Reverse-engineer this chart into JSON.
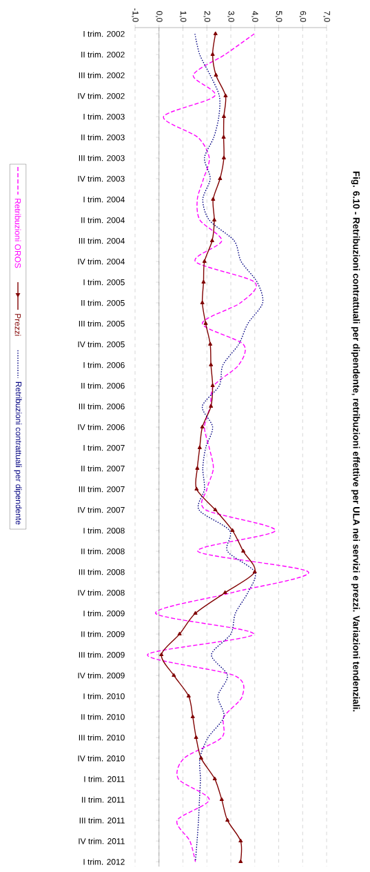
{
  "chart_data": {
    "type": "line",
    "title": "Fig. 6.10 - Retribuzioni contrattuali per dipendente, retribuzioni effettive per ULA nei servizi e prezzi. Variazioni tendenziali.",
    "categories": [
      "I trim. 2002",
      "II trim. 2002",
      "III trim. 2002",
      "IV trim. 2002",
      "I trim. 2003",
      "II trim. 2003",
      "III trim. 2003",
      "IV trim. 2003",
      "I trim. 2004",
      "II trim. 2004",
      "III trim. 2004",
      "IV trim. 2004",
      "I trim. 2005",
      "II trim. 2005",
      "III trim. 2005",
      "IV trim. 2005",
      "I trim. 2006",
      "II trim. 2006",
      "III trim. 2006",
      "IV trim. 2006",
      "I trim. 2007",
      "II trim. 2007",
      "III trim. 2007",
      "IV trim. 2007",
      "I trim. 2008",
      "II trim. 2008",
      "III trim. 2008",
      "IV trim. 2008",
      "I trim. 2009",
      "II trim. 2009",
      "III trim. 2009",
      "IV trim. 2009",
      "I trim. 2010",
      "II trim. 2010",
      "III trim. 2010",
      "IV trim. 2010",
      "I trim. 2011",
      "II trim. 2011",
      "III trim. 2011",
      "IV trim. 2011",
      "I trim. 2012"
    ],
    "series": [
      {
        "name": "Retribuzioni OROS",
        "color": "#ff00ff",
        "line_style": "dashed",
        "marker": "none",
        "values": [
          3.98,
          2.76,
          1.43,
          2.33,
          0.19,
          1.62,
          2.1,
          1.86,
          1.6,
          1.71,
          2.62,
          1.52,
          4.0,
          3.4,
          1.81,
          3.52,
          3.33,
          2.29,
          2.14,
          1.9,
          2.1,
          2.27,
          2.0,
          1.95,
          4.86,
          1.62,
          6.24,
          3.05,
          -0.14,
          3.95,
          -0.48,
          3.14,
          3.48,
          2.71,
          2.62,
          1.05,
          0.81,
          2.1,
          0.76,
          1.29,
          1.52
        ]
      },
      {
        "name": "Prezzi",
        "color": "#800000",
        "line_style": "solid",
        "marker": "triangle",
        "values": [
          2.36,
          2.24,
          2.38,
          2.78,
          2.71,
          2.7,
          2.71,
          2.55,
          2.26,
          2.31,
          2.22,
          1.9,
          1.86,
          1.81,
          1.95,
          2.14,
          2.17,
          2.24,
          2.17,
          1.81,
          1.7,
          1.6,
          1.57,
          2.35,
          3.07,
          3.52,
          4.0,
          2.76,
          1.52,
          0.86,
          0.1,
          0.62,
          1.24,
          1.41,
          1.55,
          1.76,
          2.33,
          2.62,
          2.86,
          3.41,
          3.41
        ]
      },
      {
        "name": "Retribuzioni contrattuali per dipendente",
        "color": "#000080",
        "line_style": "dotted",
        "marker": "none",
        "values": [
          1.5,
          1.7,
          2.14,
          2.52,
          2.5,
          2.29,
          1.9,
          2.14,
          1.83,
          2.1,
          3.14,
          3.43,
          4.1,
          4.33,
          3.71,
          3.33,
          2.67,
          2.52,
          1.81,
          2.24,
          1.95,
          1.83,
          1.9,
          1.67,
          2.95,
          2.86,
          4.0,
          3.71,
          3.19,
          3.0,
          2.19,
          2.86,
          2.46,
          2.71,
          2.05,
          1.71,
          1.73,
          1.69,
          1.65,
          1.59,
          1.52
        ]
      }
    ],
    "orientation": "horizontal",
    "xlim": [
      -1,
      7
    ],
    "xticks": [
      {
        "value": -1,
        "label": "-1,0"
      },
      {
        "value": 0,
        "label": "0,0"
      },
      {
        "value": 1,
        "label": "1,0"
      },
      {
        "value": 2,
        "label": "2,0"
      },
      {
        "value": 3,
        "label": "3,0"
      },
      {
        "value": 4,
        "label": "4,0"
      },
      {
        "value": 5,
        "label": "5,0"
      },
      {
        "value": 6,
        "label": "6,0"
      },
      {
        "value": 7,
        "label": "7,0"
      }
    ],
    "grid": "x",
    "legend": "left"
  }
}
